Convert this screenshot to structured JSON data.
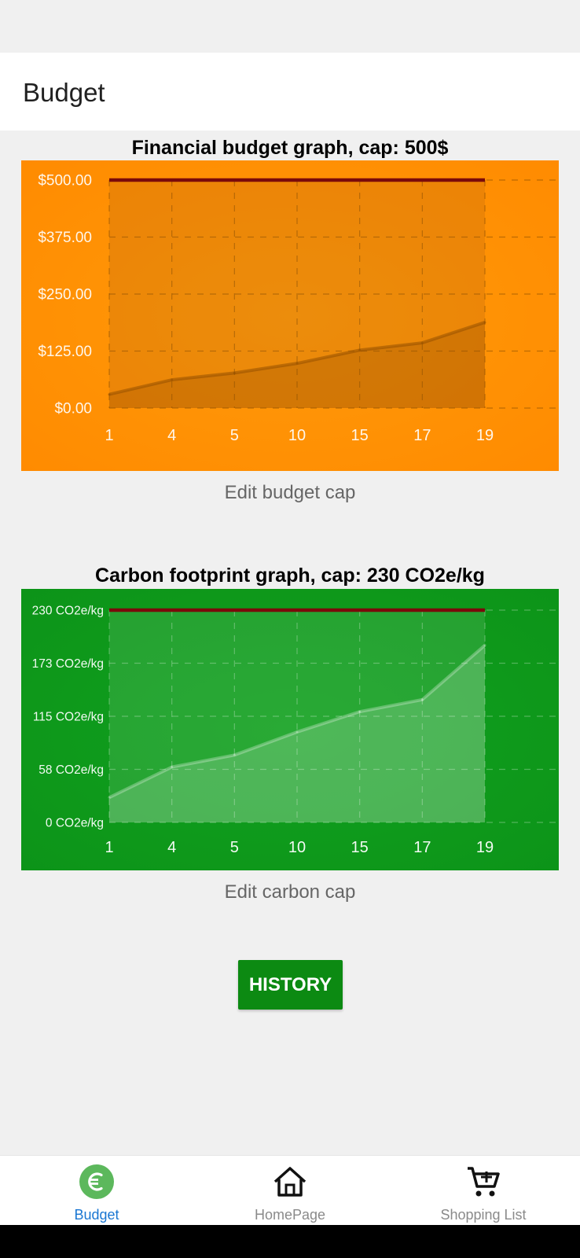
{
  "appbar": {
    "title": "Budget"
  },
  "budget_chart": {
    "title": "Financial budget graph, cap: 500$",
    "edit_label": "Edit budget cap"
  },
  "carbon_chart": {
    "title": "Carbon footprint graph, cap: 230 CO2e/kg",
    "edit_label": "Edit carbon cap"
  },
  "history_button": {
    "label": "HISTORY"
  },
  "nav": {
    "items": [
      {
        "label": "Budget",
        "icon": "euro-icon",
        "active": true
      },
      {
        "label": "HomePage",
        "icon": "home-icon",
        "active": false
      },
      {
        "label": "Shopping List",
        "icon": "cart-icon",
        "active": false
      }
    ]
  },
  "colors": {
    "budget_bg": "#ff9a0a",
    "carbon_bg": "#11a11f",
    "cap_line": "#7a0a0a",
    "accent": "#1976d2",
    "history_bg": "#0c8a12"
  },
  "chart_data": [
    {
      "type": "area",
      "title": "Financial budget graph, cap: 500$",
      "categories": [
        "1",
        "4",
        "5",
        "10",
        "15",
        "17",
        "19"
      ],
      "values": [
        30,
        62,
        77,
        98,
        127,
        143,
        188
      ],
      "cap": 500,
      "yticks": [
        "$0.00",
        "$125.00",
        "$250.00",
        "$375.00",
        "$500.00"
      ],
      "ylim": [
        0,
        500
      ],
      "grid": true
    },
    {
      "type": "area",
      "title": "Carbon footprint graph, cap: 230 CO2e/kg",
      "categories": [
        "1",
        "4",
        "5",
        "10",
        "15",
        "17",
        "19"
      ],
      "values": [
        27,
        60,
        73,
        98,
        120,
        133,
        192
      ],
      "cap": 230,
      "yticks": [
        "0 CO2e/kg",
        "58 CO2e/kg",
        "115 CO2e/kg",
        "173 CO2e/kg",
        "230 CO2e/kg"
      ],
      "ylim": [
        0,
        230
      ],
      "grid": true
    }
  ]
}
